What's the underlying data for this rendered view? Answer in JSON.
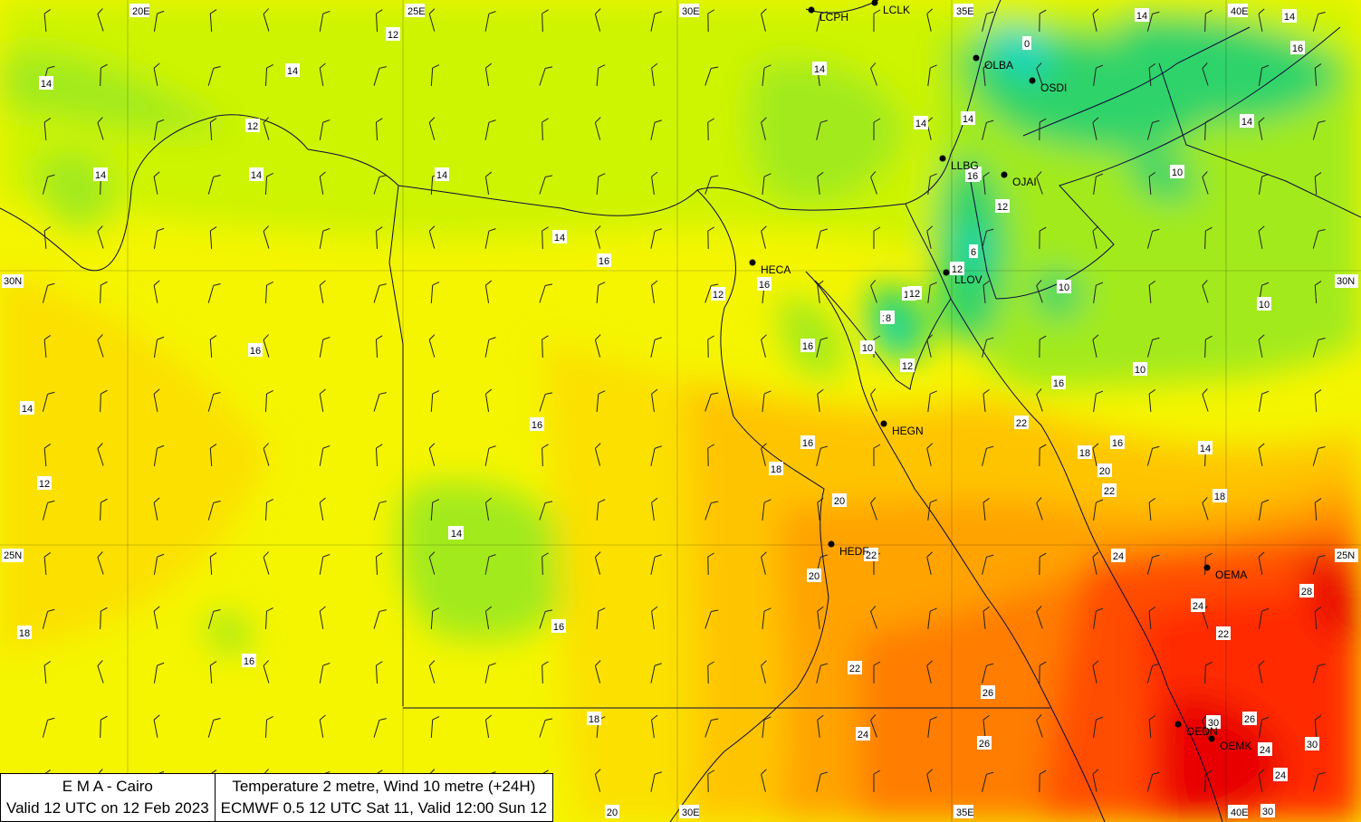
{
  "infobox": {
    "left_line1": "E M A  -  Cairo",
    "left_line2": "Valid 12 UTC on 12 Feb 2023",
    "right_line1": "Temperature  2 metre, Wind  10 metre (+24H)",
    "right_line2": "ECMWF 0.5 12 UTC Sat 11, Valid 12:00 Sun 12"
  },
  "colors": {
    "t8": "#10d8c0",
    "t10": "#2ed36a",
    "t12": "#a2ea1c",
    "t14": "#cdf400",
    "t16": "#f5f500",
    "t18": "#fbe000",
    "t20": "#ffc400",
    "t22": "#ffa300",
    "t24": "#ff7d00",
    "t26": "#ff4d00",
    "t28": "#ff2a00",
    "t30": "#e80000"
  },
  "graticule": {
    "lon_labels": [
      "20E",
      "25E",
      "30E",
      "35E",
      "40E"
    ],
    "lat_labels": [
      "30N",
      "25N"
    ],
    "lat_labels_right": [
      "30N",
      "25N"
    ]
  },
  "stations": [
    {
      "id": "LCPH"
    },
    {
      "id": "LCLK"
    },
    {
      "id": "OLBA"
    },
    {
      "id": "OSDI"
    },
    {
      "id": "LLBG"
    },
    {
      "id": "OJAI"
    },
    {
      "id": "HECA"
    },
    {
      "id": "LLOV"
    },
    {
      "id": "HEGN"
    },
    {
      "id": "HEDF"
    },
    {
      "id": "OEMA"
    },
    {
      "id": "OEDN"
    },
    {
      "id": "OEMK"
    }
  ],
  "temperature_labels": [
    "12",
    "14",
    "14",
    "14",
    "12",
    "14",
    "14",
    "14",
    "14",
    "14",
    "14",
    "14",
    "14",
    "16",
    "14",
    "10",
    "12",
    "10",
    "10",
    "10",
    "16",
    "16",
    "16",
    "16",
    "10",
    "14",
    "12",
    "10",
    "12",
    "8",
    "16",
    "14",
    "12",
    "16",
    "14",
    "16",
    "18",
    "20",
    "22",
    "22",
    "20",
    "16",
    "18",
    "14",
    "20",
    "18",
    "24",
    "28",
    "24",
    "22",
    "26",
    "30",
    "26",
    "24",
    "30",
    "24",
    "30",
    "20",
    "22",
    "22",
    "24",
    "26",
    "18",
    "16",
    "18",
    "14",
    "16",
    "6",
    "0",
    "12",
    "12",
    "16",
    "8"
  ]
}
